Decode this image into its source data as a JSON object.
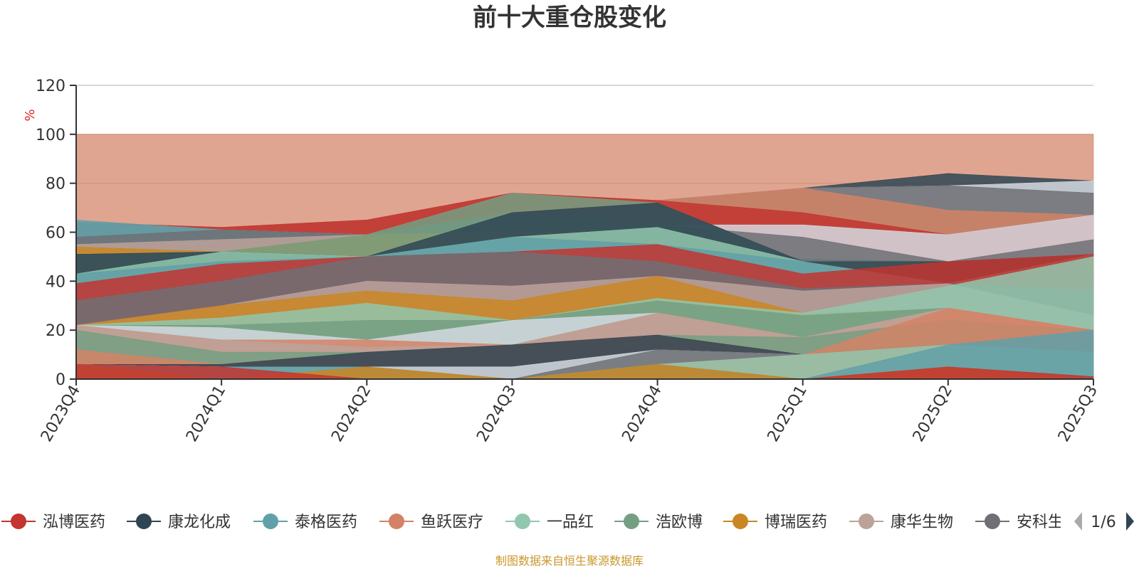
{
  "chart_data": {
    "type": "area",
    "title": "前十大重仓股变化",
    "ylabel": "%",
    "ylim": [
      0,
      120
    ],
    "yticks": [
      0,
      20,
      40,
      60,
      80,
      100,
      120
    ],
    "grid": true,
    "categories": [
      "2023Q4",
      "2024Q1",
      "2024Q2",
      "2024Q3",
      "2024Q4",
      "2025Q1",
      "2025Q2",
      "2025Q3"
    ],
    "legend_position": "bottom",
    "source_note": "制图数据来自恒生聚源数据库",
    "series": [
      {
        "name": "泓博医药",
        "values": [
          6,
          6,
          0,
          0,
          0,
          0,
          5,
          0
        ]
      },
      {
        "name": "康龙化成",
        "values": [
          0,
          0,
          11,
          15,
          6,
          10,
          0,
          11
        ]
      },
      {
        "name": "泰格医药",
        "values": [
          0,
          0,
          0,
          0,
          0,
          0,
          10,
          9
        ]
      },
      {
        "name": "鱼跃医疗",
        "values": [
          6,
          0,
          0,
          10,
          21,
          0,
          0,
          0
        ]
      },
      {
        "name": "一品红",
        "values": [
          0,
          0,
          0,
          0,
          0,
          17,
          14,
          0
        ]
      },
      {
        "name": "浩欧博",
        "values": [
          10,
          6,
          0,
          0,
          0,
          0,
          0,
          0
        ]
      },
      {
        "name": "博瑞医药",
        "values": [
          0,
          0,
          0,
          0,
          10,
          0,
          0,
          0
        ]
      },
      {
        "name": "康华生物",
        "values": [
          0,
          4,
          0,
          0,
          0,
          0,
          0,
          0
        ]
      },
      {
        "name": "安科生物",
        "values": [
          0,
          0,
          0,
          0,
          0,
          0,
          0,
          0
        ]
      }
    ],
    "legend_visible": [
      {
        "name": "泓博医药",
        "color": "#c23531"
      },
      {
        "name": "康龙化成",
        "color": "#2f4554"
      },
      {
        "name": "泰格医药",
        "color": "#61a0a8"
      },
      {
        "name": "鱼跃医疗",
        "color": "#d48265"
      },
      {
        "name": "一品红",
        "color": "#91c7ae"
      },
      {
        "name": "浩欧博",
        "color": "#749f83"
      },
      {
        "name": "博瑞医药",
        "color": "#ca8622"
      },
      {
        "name": "康华生物",
        "color": "#bda29a"
      },
      {
        "name": "安科生物",
        "color": "#6e7074"
      }
    ],
    "layers": [
      {
        "color": "#d48265",
        "values": [
          100,
          100,
          100,
          100,
          100,
          100,
          100,
          100
        ]
      },
      {
        "color": "#2f4554",
        "values": [
          64,
          62,
          65,
          76,
          73,
          78,
          84,
          81
        ]
      },
      {
        "color": "#d4d9e0",
        "values": [
          64,
          62,
          65,
          76,
          73,
          78,
          79,
          81
        ]
      },
      {
        "color": "#6e7074",
        "values": [
          64,
          62,
          65,
          76,
          73,
          78,
          79,
          76
        ]
      },
      {
        "color": "#d48265",
        "values": [
          64,
          62,
          65,
          76,
          73,
          78,
          69,
          67
        ]
      },
      {
        "color": "#c23531",
        "values": [
          64,
          62,
          65,
          76,
          73,
          68,
          59,
          67
        ]
      },
      {
        "color": "#d4d9e0",
        "values": [
          64,
          61,
          59,
          68,
          63,
          63,
          59,
          67
        ]
      },
      {
        "color": "#6e7074",
        "values": [
          64,
          61,
          59,
          68,
          63,
          58,
          48,
          57
        ]
      },
      {
        "color": "#61a0a8",
        "values": [
          65,
          61,
          59,
          68,
          62,
          49,
          48,
          51
        ]
      },
      {
        "color": "#6e7074",
        "values": [
          58,
          61,
          59,
          68,
          62,
          49,
          48,
          51
        ]
      },
      {
        "color": "#bda29a",
        "values": [
          55,
          57,
          59,
          60,
          62,
          48,
          48,
          51
        ]
      },
      {
        "color": "#ca8622",
        "values": [
          54,
          52,
          59,
          60,
          62,
          48,
          48,
          51
        ]
      },
      {
        "color": "#749f83",
        "values": [
          51,
          52,
          59,
          76,
          72,
          48,
          48,
          51
        ]
      },
      {
        "color": "#2f4554",
        "values": [
          51,
          52,
          50,
          68,
          72,
          48,
          48,
          51
        ]
      },
      {
        "color": "#91c7ae",
        "values": [
          43,
          52,
          50,
          58,
          62,
          48,
          39,
          51
        ]
      },
      {
        "color": "#61a0a8",
        "values": [
          43,
          48,
          50,
          58,
          55,
          48,
          39,
          41
        ]
      },
      {
        "color": "#c23531",
        "values": [
          39,
          47,
          50,
          52,
          55,
          43,
          48,
          51
        ]
      },
      {
        "color": "#6e7074",
        "values": [
          32,
          40,
          50,
          52,
          48,
          37,
          39,
          36
        ]
      },
      {
        "color": "#bda29a",
        "values": [
          22,
          30,
          40,
          38,
          42,
          36,
          39,
          26
        ]
      },
      {
        "color": "#ca8622",
        "values": [
          22,
          30,
          36,
          32,
          42,
          27,
          29,
          20
        ]
      },
      {
        "color": "#91c7ae",
        "values": [
          22,
          25,
          31,
          24,
          33,
          27,
          38,
          50
        ]
      },
      {
        "color": "#749f83",
        "values": [
          22,
          22,
          24,
          24,
          32,
          26,
          29,
          20
        ]
      },
      {
        "color": "#d4d9e0",
        "values": [
          22,
          21,
          16,
          24,
          27,
          17,
          29,
          20
        ]
      },
      {
        "color": "#d48265",
        "values": [
          22,
          16,
          16,
          14,
          27,
          17,
          29,
          20
        ]
      },
      {
        "color": "#bda29a",
        "values": [
          22,
          16,
          13,
          14,
          27,
          17,
          29,
          20
        ]
      },
      {
        "color": "#749f83",
        "values": [
          20,
          11,
          11,
          14,
          18,
          17,
          24,
          20
        ]
      },
      {
        "color": "#d48265",
        "values": [
          12,
          6,
          11,
          14,
          18,
          10,
          29,
          20
        ]
      },
      {
        "color": "#2f4554",
        "values": [
          6,
          6,
          11,
          14,
          18,
          10,
          14,
          11
        ]
      },
      {
        "color": "#d4d9e0",
        "values": [
          6,
          5,
          5,
          5,
          12,
          10,
          14,
          11
        ]
      },
      {
        "color": "#6e7074",
        "values": [
          6,
          5,
          5,
          0,
          12,
          10,
          14,
          11
        ]
      },
      {
        "color": "#d48265",
        "values": [
          6,
          5,
          5,
          0,
          6,
          10,
          14,
          11
        ]
      },
      {
        "color": "#91c7ae",
        "values": [
          6,
          5,
          5,
          0,
          6,
          10,
          14,
          11
        ]
      },
      {
        "color": "#61a0a8",
        "values": [
          6,
          5,
          5,
          0,
          6,
          0,
          14,
          20
        ]
      },
      {
        "color": "#ca8622",
        "values": [
          6,
          0,
          5,
          0,
          6,
          0,
          5,
          0
        ]
      },
      {
        "color": "#c23531",
        "values": [
          6,
          5,
          0,
          0,
          0,
          0,
          5,
          1
        ]
      }
    ],
    "pagination": "1/6"
  }
}
